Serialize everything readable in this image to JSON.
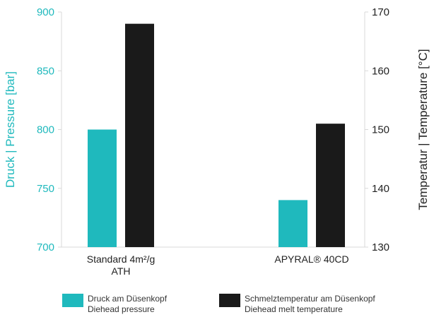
{
  "chart_data": {
    "type": "bar",
    "categories": [
      [
        "Standard 4m²/g",
        "ATH"
      ],
      [
        "APYRAL® 40CD"
      ]
    ],
    "series": [
      {
        "name": "Druck am Düsenkopf / Diehead pressure",
        "axis": "left",
        "color": "#1fb9bd",
        "values": [
          800,
          740
        ]
      },
      {
        "name": "Schmelztemperatur am Düsenkopf / Diehead melt temperature",
        "axis": "right",
        "color": "#1a1a1a",
        "values": [
          168,
          151
        ]
      }
    ],
    "y_left": {
      "label": "Druck | Pressure [bar]",
      "lim": [
        700,
        900
      ],
      "ticks": [
        700,
        750,
        800,
        850,
        900
      ]
    },
    "y_right": {
      "label": "Temperatur | Temperature [°C]",
      "lim": [
        130,
        170
      ],
      "ticks": [
        130,
        140,
        150,
        160,
        170
      ]
    },
    "legend": [
      {
        "lines": [
          "Druck am Düsenkopf",
          "Diehead pressure"
        ],
        "color": "#1fb9bd"
      },
      {
        "lines": [
          "Schmelztemperatur am Düsenkopf",
          "Diehead melt temperature"
        ],
        "color": "#1a1a1a"
      }
    ],
    "legend_position": "bottom",
    "grid": false
  }
}
